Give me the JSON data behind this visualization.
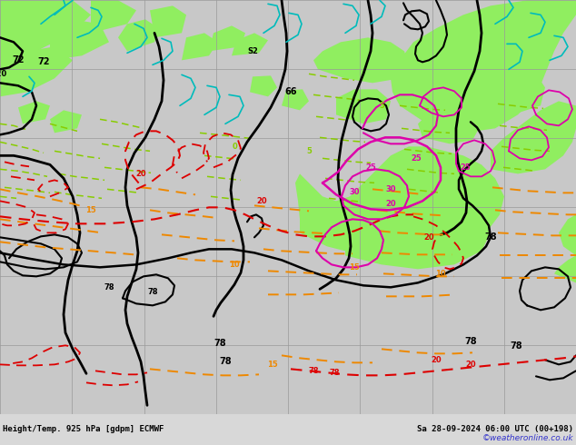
{
  "title_left": "Height/Temp. 925 hPa [gdpm] ECMWF",
  "title_right": "Sa 28-09-2024 06:00 UTC (00+198)",
  "watermark": "©weatheronline.co.uk",
  "fig_width": 6.34,
  "fig_height": 4.9,
  "dpi": 100,
  "ocean_color": "#c8c8c8",
  "land_color": "#90ee60",
  "land_color2": "#b8e890",
  "grid_color": "#999999",
  "black": "#000000",
  "cyan": "#00bbbb",
  "lgreen": "#88cc00",
  "orange": "#ee8800",
  "red": "#dd0000",
  "magenta": "#dd00aa",
  "bottom_bg": "#d8d8d8",
  "title_color": "#000000",
  "watermark_color": "#3333cc"
}
